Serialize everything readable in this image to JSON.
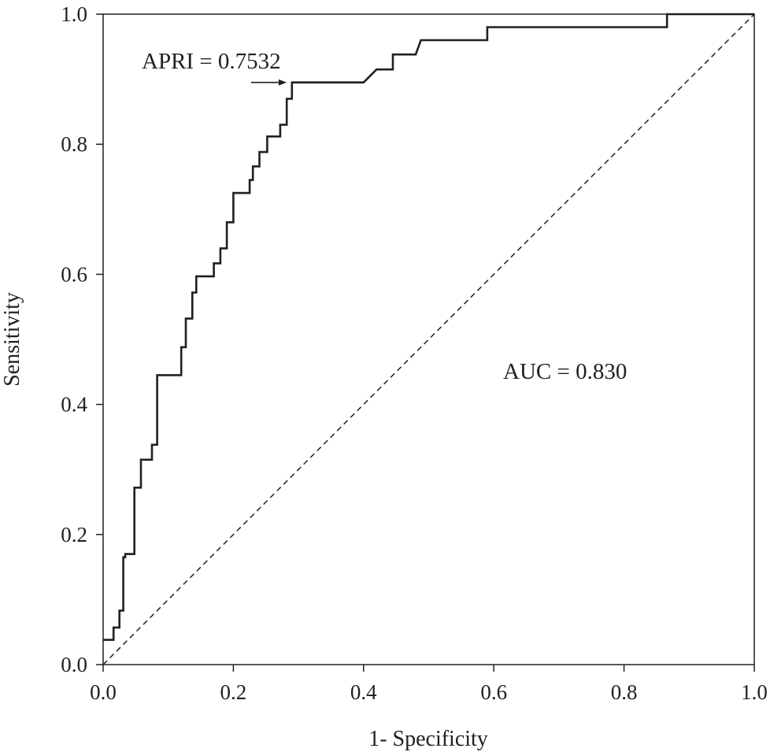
{
  "chart_data": {
    "type": "line",
    "title": "",
    "xlabel": "1- Specificity",
    "ylabel": "Sensitivity",
    "xlim": [
      0,
      1
    ],
    "ylim": [
      0,
      1
    ],
    "x_ticks": [
      "0.0",
      "0.2",
      "0.4",
      "0.6",
      "0.8",
      "1.0"
    ],
    "y_ticks": [
      "0.0",
      "0.2",
      "0.4",
      "0.6",
      "0.8",
      "1.0"
    ],
    "grid": false,
    "legend": "none",
    "series": [
      {
        "kind": "roc-step",
        "line_color": "#231f20",
        "points": [
          [
            0.0,
            0.038
          ],
          [
            0.016,
            0.038
          ],
          [
            0.016,
            0.057
          ],
          [
            0.025,
            0.057
          ],
          [
            0.025,
            0.083
          ],
          [
            0.031,
            0.083
          ],
          [
            0.031,
            0.165
          ],
          [
            0.034,
            0.165
          ],
          [
            0.034,
            0.17
          ],
          [
            0.048,
            0.17
          ],
          [
            0.048,
            0.272
          ],
          [
            0.058,
            0.272
          ],
          [
            0.058,
            0.315
          ],
          [
            0.075,
            0.315
          ],
          [
            0.075,
            0.338
          ],
          [
            0.083,
            0.338
          ],
          [
            0.083,
            0.445
          ],
          [
            0.12,
            0.445
          ],
          [
            0.12,
            0.488
          ],
          [
            0.127,
            0.488
          ],
          [
            0.127,
            0.532
          ],
          [
            0.137,
            0.532
          ],
          [
            0.137,
            0.572
          ],
          [
            0.143,
            0.572
          ],
          [
            0.143,
            0.597
          ],
          [
            0.17,
            0.597
          ],
          [
            0.17,
            0.617
          ],
          [
            0.18,
            0.617
          ],
          [
            0.18,
            0.64
          ],
          [
            0.19,
            0.64
          ],
          [
            0.19,
            0.68
          ],
          [
            0.2,
            0.68
          ],
          [
            0.2,
            0.725
          ],
          [
            0.225,
            0.725
          ],
          [
            0.225,
            0.745
          ],
          [
            0.23,
            0.745
          ],
          [
            0.23,
            0.766
          ],
          [
            0.24,
            0.766
          ],
          [
            0.24,
            0.788
          ],
          [
            0.252,
            0.788
          ],
          [
            0.252,
            0.812
          ],
          [
            0.272,
            0.812
          ],
          [
            0.272,
            0.83
          ],
          [
            0.282,
            0.83
          ],
          [
            0.282,
            0.87
          ],
          [
            0.29,
            0.87
          ],
          [
            0.29,
            0.895
          ],
          [
            0.4,
            0.895
          ],
          [
            0.42,
            0.915
          ],
          [
            0.445,
            0.915
          ],
          [
            0.445,
            0.938
          ],
          [
            0.48,
            0.938
          ],
          [
            0.488,
            0.96
          ],
          [
            0.59,
            0.96
          ],
          [
            0.59,
            0.98
          ],
          [
            0.866,
            0.98
          ],
          [
            0.866,
            1.0
          ],
          [
            1.0,
            1.0
          ]
        ]
      },
      {
        "kind": "reference-diagonal",
        "line_style": "dashed",
        "line_color": "#231f20",
        "points": [
          [
            0,
            0
          ],
          [
            1,
            1
          ]
        ]
      }
    ],
    "annotations": [
      {
        "text": "APRI = 0.7532",
        "points_to": [
          0.29,
          0.895
        ],
        "arrow": true
      },
      {
        "text": "AUC = 0.830"
      }
    ]
  }
}
